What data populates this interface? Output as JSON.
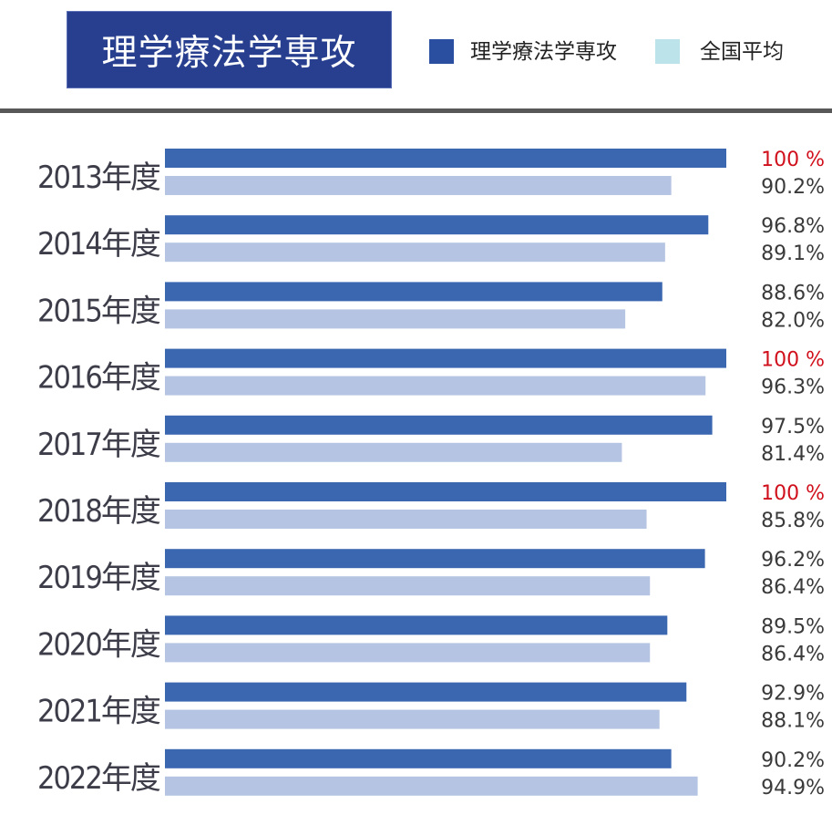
{
  "header": {
    "title": "理学療法学専攻"
  },
  "legend": [
    {
      "label": "理学療法学専攻",
      "color": "#2a4fa0"
    },
    {
      "label": "全国平均",
      "color": "#bde3ea"
    }
  ],
  "colors": {
    "major_bar": "#3b67b0",
    "avg_bar": "#b4c4e2",
    "highlight_text": "#d0101c",
    "normal_text": "#3a3a3a"
  },
  "chart_data": {
    "type": "bar",
    "orientation": "horizontal",
    "categories": [
      "2013年度",
      "2014年度",
      "2015年度",
      "2016年度",
      "2017年度",
      "2018年度",
      "2019年度",
      "2020年度",
      "2021年度",
      "2022年度"
    ],
    "series": [
      {
        "name": "理学療法学専攻",
        "values": [
          100,
          96.8,
          88.6,
          100,
          97.5,
          100,
          96.2,
          89.5,
          92.9,
          90.2
        ],
        "labels": [
          "100 %",
          "96.8%",
          "88.6%",
          "100 %",
          "97.5%",
          "100 %",
          "96.2%",
          "89.5%",
          "92.9%",
          "90.2%"
        ]
      },
      {
        "name": "全国平均",
        "values": [
          90.2,
          89.1,
          82.0,
          96.3,
          81.4,
          85.8,
          86.4,
          86.4,
          88.1,
          94.9
        ],
        "labels": [
          "90.2%",
          "89.1%",
          "82.0%",
          "96.3%",
          "81.4%",
          "85.8%",
          "86.4%",
          "86.4%",
          "88.1%",
          "94.9%"
        ]
      }
    ],
    "xlim": [
      0,
      100
    ],
    "grid": false,
    "legend_position": "top-right",
    "highlight_full": true
  }
}
